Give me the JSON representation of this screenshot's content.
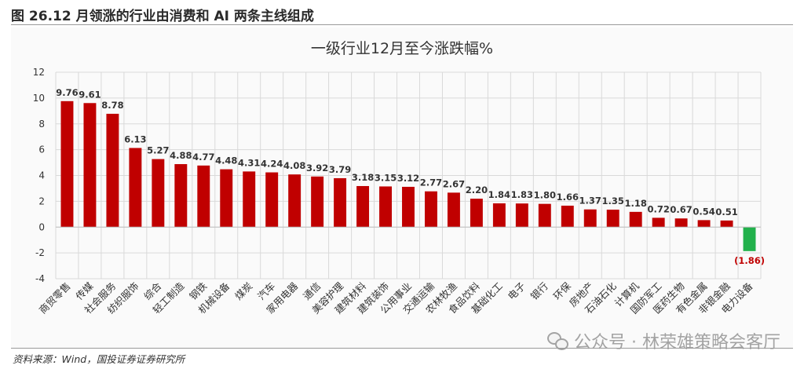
{
  "figure_title": "图 26.12 月领涨的行业由消费和 AI 两条主线组成",
  "source_note": "资料来源：Wind，国投证券证券研究所",
  "watermark": "公众号 · 林荣雄策略会客厅",
  "colors": {
    "positive": "#c00000",
    "negative": "#22b14c",
    "negative_label": "#c00000",
    "grid": "#d9d9d9"
  },
  "chart_data": {
    "type": "bar",
    "title": "一级行业12月至今涨跌幅%",
    "xlabel": "",
    "ylabel": "",
    "ylim": [
      -4,
      12
    ],
    "yticks": [
      -4,
      -2,
      0,
      2,
      4,
      6,
      8,
      10,
      12
    ],
    "grid": true,
    "categories": [
      "商贸零售",
      "传媒",
      "社会服务",
      "纺织服饰",
      "综合",
      "轻工制造",
      "钢铁",
      "机械设备",
      "煤炭",
      "汽车",
      "家用电器",
      "通信",
      "美容护理",
      "建筑材料",
      "建筑装饰",
      "公用事业",
      "交通运输",
      "农林牧渔",
      "食品饮料",
      "基础化工",
      "电子",
      "银行",
      "环保",
      "房地产",
      "石油石化",
      "计算机",
      "国防军工",
      "医药生物",
      "有色金属",
      "非银金融",
      "电力设备"
    ],
    "values": [
      9.76,
      9.61,
      8.78,
      6.13,
      5.27,
      4.88,
      4.77,
      4.48,
      4.31,
      4.24,
      4.08,
      3.92,
      3.79,
      3.18,
      3.15,
      3.12,
      2.77,
      2.67,
      2.2,
      1.84,
      1.83,
      1.8,
      1.66,
      1.37,
      1.35,
      1.18,
      0.72,
      0.67,
      0.54,
      0.51,
      -1.86
    ],
    "value_labels": [
      "9.76",
      "9.61",
      "8.78",
      "6.13",
      "5.27",
      "4.88",
      "4.77",
      "4.48",
      "4.31",
      "4.24",
      "4.08",
      "3.92",
      "3.79",
      "3.18",
      "3.15",
      "3.12",
      "2.77",
      "2.67",
      "2.20",
      "1.84",
      "1.83",
      "1.80",
      "1.66",
      "1.37",
      "1.35",
      "1.18",
      "0.72",
      "0.67",
      "0.54",
      "0.51",
      "(1.86)"
    ]
  }
}
